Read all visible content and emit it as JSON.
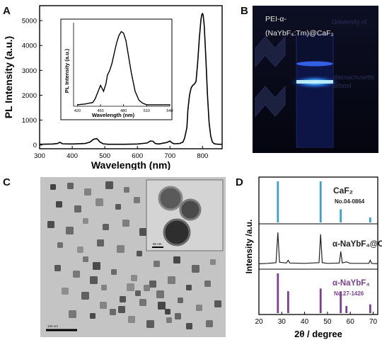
{
  "figure": {
    "panels": {
      "a": "A",
      "b": "B",
      "c": "C",
      "d": "D"
    }
  },
  "photo_panel": {
    "label_line1": "PEI-α-",
    "label_line2": "(NaYbF₄:Tm)@CaF₂",
    "background_text": [
      "University of",
      "Massachusetts",
      "School"
    ]
  },
  "tem_panel": {
    "inset_scalebar": "50 nm",
    "scalebar": "100 nm"
  },
  "chart_data": [
    {
      "panel": "A",
      "type": "line",
      "xlabel": "Wavelength (nm)",
      "ylabel": "PL Intensity (a.u.)",
      "xlim": [
        300,
        860
      ],
      "ylim": [
        -150,
        5600
      ],
      "xticks": [
        300,
        400,
        500,
        600,
        700,
        800
      ],
      "yticks": [
        0,
        1000,
        2000,
        3000,
        4000,
        5000
      ],
      "x": [
        300,
        340,
        355,
        362,
        370,
        400,
        440,
        455,
        465,
        475,
        480,
        485,
        495,
        510,
        560,
        600,
        630,
        640,
        648,
        655,
        665,
        690,
        700,
        705,
        712,
        730,
        740,
        745,
        752,
        755,
        760,
        765,
        770,
        775,
        780,
        785,
        790,
        795,
        798,
        800,
        802,
        805,
        810,
        815,
        820,
        825,
        830,
        835,
        840,
        850,
        860
      ],
      "y": [
        30,
        40,
        60,
        110,
        50,
        40,
        60,
        120,
        230,
        260,
        200,
        120,
        50,
        30,
        30,
        40,
        80,
        160,
        150,
        60,
        40,
        100,
        160,
        100,
        50,
        60,
        120,
        280,
        700,
        1400,
        2000,
        2300,
        2400,
        2450,
        2550,
        3300,
        4300,
        5050,
        5250,
        5280,
        5200,
        4800,
        3500,
        2000,
        900,
        350,
        120,
        60,
        40,
        30,
        30
      ],
      "inset": {
        "xlabel": "Wavelength (nm)",
        "ylabel": "PL Intensity (a.u.)",
        "xlim": [
          415,
          540
        ],
        "ylim": [
          0,
          1.12
        ],
        "xticks": [
          420,
          450,
          480,
          510,
          540
        ],
        "x": [
          420,
          430,
          440,
          443,
          447,
          450,
          452,
          454,
          457,
          459,
          462,
          465,
          468,
          471,
          474,
          477,
          480,
          483,
          486,
          490,
          495,
          500,
          505,
          510,
          520,
          530,
          540
        ],
        "y": [
          0.02,
          0.03,
          0.05,
          0.1,
          0.2,
          0.28,
          0.24,
          0.2,
          0.3,
          0.42,
          0.48,
          0.58,
          0.72,
          0.85,
          0.95,
          1.0,
          0.98,
          0.88,
          0.7,
          0.45,
          0.2,
          0.08,
          0.04,
          0.02,
          0.02,
          0.02,
          0.02
        ]
      }
    },
    {
      "panel": "D",
      "type": "bar",
      "xlabel": "2θ / degree",
      "ylabel": "Intensity /a.u.",
      "xlim": [
        20,
        72
      ],
      "xticks": [
        20,
        30,
        40,
        50,
        60,
        70
      ],
      "series": [
        {
          "name": "CaF₂",
          "ref": "No.04-0864",
          "color": "#3aa0d0",
          "x": [
            28.3,
            47.0,
            55.8,
            68.7
          ],
          "values": [
            1.0,
            1.0,
            0.32,
            0.12
          ]
        },
        {
          "name": "α-NaYbF₄@CaF₂",
          "color": "#222222",
          "x": [
            20,
            24,
            27.5,
            28.3,
            29.0,
            32.0,
            32.8,
            33.5,
            40,
            46.3,
            47.0,
            47.7,
            50,
            55.2,
            55.8,
            56.5,
            58.3,
            60,
            68.1,
            68.7,
            69.3,
            72
          ],
          "values": [
            0.03,
            0.04,
            0.06,
            0.85,
            0.07,
            0.05,
            0.12,
            0.05,
            0.04,
            0.06,
            0.8,
            0.06,
            0.04,
            0.05,
            0.35,
            0.05,
            0.08,
            0.04,
            0.04,
            0.12,
            0.04,
            0.03
          ]
        },
        {
          "name": "α-NaYbF₄",
          "ref": "No.27-1426",
          "color": "#7b3f8f",
          "x": [
            28.3,
            32.8,
            47.0,
            55.8,
            58.3,
            68.7
          ],
          "values": [
            1.0,
            0.55,
            0.62,
            0.55,
            0.18,
            0.22
          ]
        }
      ]
    }
  ]
}
